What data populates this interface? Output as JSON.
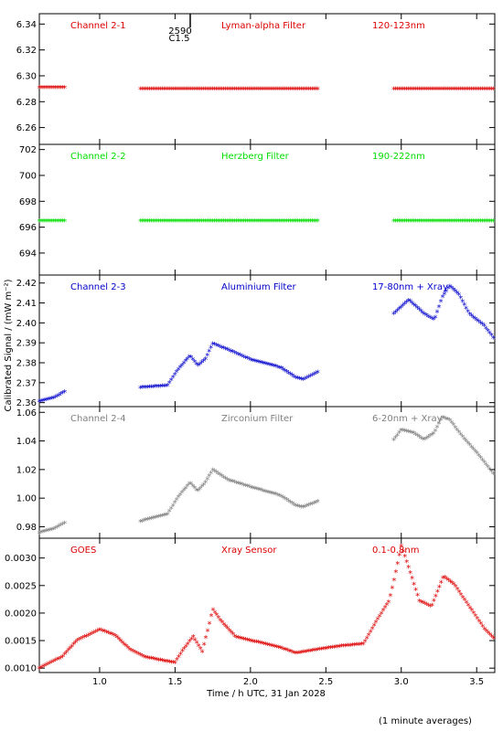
{
  "figure": {
    "ylabel": "Calibrated Signal / (mW m⁻²)",
    "xlabel": "Time / h UTC, 31 Jan 2028",
    "footnote": "(1 minute averages)",
    "marker_text_1": "2590",
    "marker_text_2": "C1.5"
  },
  "chart_data": [
    {
      "type": "scatter",
      "labels": [
        "Channel 2-1",
        "Lyman-alpha Filter",
        "120-123nm"
      ],
      "color": "#dd0000",
      "xlim": [
        0.6,
        3.62
      ],
      "ylim": [
        6.247,
        6.348
      ],
      "yticks": [
        6.26,
        6.28,
        6.3,
        6.32,
        6.34
      ],
      "ytick_labels": [
        "6.26",
        "6.28",
        "6.30",
        "6.32",
        "6.34"
      ],
      "segments": [
        {
          "x0": 0.6,
          "x1": 0.77,
          "points": [
            [
              0.6,
              6.29
            ],
            [
              0.77,
              6.29
            ]
          ]
        },
        {
          "x0": 1.27,
          "x1": 2.45,
          "points": [
            [
              1.27,
              6.289
            ],
            [
              2.45,
              6.289
            ]
          ]
        },
        {
          "x0": 2.95,
          "x1": 3.62,
          "points": [
            [
              2.95,
              6.289
            ],
            [
              3.62,
              6.289
            ]
          ]
        }
      ]
    },
    {
      "type": "scatter",
      "labels": [
        "Channel 2-2",
        "Herzberg Filter",
        "190-222nm"
      ],
      "color": "#00dd00",
      "xlim": [
        0.6,
        3.62
      ],
      "ylim": [
        692.3,
        702.4
      ],
      "yticks": [
        694,
        696,
        698,
        700,
        702
      ],
      "ytick_labels": [
        "694",
        "696",
        "698",
        "700",
        "702"
      ],
      "segments": [
        {
          "x0": 0.6,
          "x1": 0.77,
          "points": [
            [
              0.6,
              696.4
            ],
            [
              0.77,
              696.4
            ]
          ]
        },
        {
          "x0": 1.27,
          "x1": 2.45,
          "points": [
            [
              1.27,
              696.4
            ],
            [
              2.45,
              696.4
            ]
          ]
        },
        {
          "x0": 2.95,
          "x1": 3.62,
          "points": [
            [
              2.95,
              696.4
            ],
            [
              3.62,
              696.4
            ]
          ]
        }
      ]
    },
    {
      "type": "scatter",
      "labels": [
        "Channel 2-3",
        "Aluminium Filter",
        "17-80nm + Xray"
      ],
      "color": "#0000cc",
      "xlim": [
        0.6,
        3.62
      ],
      "ylim": [
        2.358,
        2.424
      ],
      "yticks": [
        2.36,
        2.37,
        2.38,
        2.39,
        2.4,
        2.41,
        2.42
      ],
      "ytick_labels": [
        "2.36",
        "2.37",
        "2.38",
        "2.39",
        "2.40",
        "2.41",
        "2.42"
      ],
      "segments": [
        {
          "x0": 0.6,
          "x1": 0.77,
          "points": [
            [
              0.6,
              2.36
            ],
            [
              0.7,
              2.362
            ],
            [
              0.77,
              2.365
            ]
          ]
        },
        {
          "x0": 1.27,
          "x1": 2.45,
          "points": [
            [
              1.27,
              2.367
            ],
            [
              1.45,
              2.368
            ],
            [
              1.52,
              2.376
            ],
            [
              1.6,
              2.383
            ],
            [
              1.65,
              2.378
            ],
            [
              1.7,
              2.381
            ],
            [
              1.75,
              2.389
            ],
            [
              1.85,
              2.386
            ],
            [
              2.0,
              2.381
            ],
            [
              2.2,
              2.377
            ],
            [
              2.3,
              2.372
            ],
            [
              2.35,
              2.371
            ],
            [
              2.45,
              2.375
            ]
          ]
        },
        {
          "x0": 2.95,
          "x1": 3.62,
          "points": [
            [
              2.95,
              2.404
            ],
            [
              3.05,
              2.411
            ],
            [
              3.15,
              2.404
            ],
            [
              3.22,
              2.401
            ],
            [
              3.27,
              2.412
            ],
            [
              3.32,
              2.418
            ],
            [
              3.38,
              2.414
            ],
            [
              3.45,
              2.404
            ],
            [
              3.55,
              2.398
            ],
            [
              3.62,
              2.391
            ]
          ]
        }
      ]
    },
    {
      "type": "scatter",
      "labels": [
        "Channel 2-4",
        "Zirconium Filter",
        "6-20nm + Xray"
      ],
      "color": "#808080",
      "xlim": [
        0.6,
        3.62
      ],
      "ylim": [
        0.972,
        1.064
      ],
      "yticks": [
        0.98,
        1.0,
        1.02,
        1.04,
        1.06
      ],
      "ytick_labels": [
        "0.98",
        "1.00",
        "1.02",
        "1.04",
        "1.06"
      ],
      "segments": [
        {
          "x0": 0.6,
          "x1": 0.77,
          "points": [
            [
              0.6,
              0.975
            ],
            [
              0.7,
              0.978
            ],
            [
              0.77,
              0.982
            ]
          ]
        },
        {
          "x0": 1.27,
          "x1": 2.45,
          "points": [
            [
              1.27,
              0.983
            ],
            [
              1.45,
              0.988
            ],
            [
              1.52,
              1.0
            ],
            [
              1.6,
              1.01
            ],
            [
              1.65,
              1.004
            ],
            [
              1.7,
              1.01
            ],
            [
              1.75,
              1.019
            ],
            [
              1.85,
              1.012
            ],
            [
              2.0,
              1.007
            ],
            [
              2.2,
              1.001
            ],
            [
              2.3,
              0.994
            ],
            [
              2.35,
              0.993
            ],
            [
              2.45,
              0.997
            ]
          ]
        },
        {
          "x0": 2.95,
          "x1": 3.62,
          "points": [
            [
              2.95,
              1.04
            ],
            [
              3.0,
              1.047
            ],
            [
              3.08,
              1.045
            ],
            [
              3.15,
              1.04
            ],
            [
              3.22,
              1.045
            ],
            [
              3.27,
              1.056
            ],
            [
              3.32,
              1.054
            ],
            [
              3.4,
              1.043
            ],
            [
              3.5,
              1.031
            ],
            [
              3.62,
              1.015
            ]
          ]
        }
      ]
    },
    {
      "type": "scatter",
      "labels": [
        "GOES",
        "Xray Sensor",
        "0.1-0.8nm"
      ],
      "color": "#dd0000",
      "xlim": [
        0.6,
        3.62
      ],
      "ylim": [
        0.00092,
        0.00336
      ],
      "yticks": [
        0.001,
        0.0015,
        0.002,
        0.0025,
        0.003
      ],
      "ytick_labels": [
        "0.0010",
        "0.0015",
        "0.0020",
        "0.0025",
        "0.0030"
      ],
      "segments": [
        {
          "x0": 0.6,
          "x1": 3.62,
          "points": [
            [
              0.6,
              0.00098
            ],
            [
              0.75,
              0.00118
            ],
            [
              0.85,
              0.00148
            ],
            [
              1.0,
              0.00168
            ],
            [
              1.1,
              0.00158
            ],
            [
              1.2,
              0.00132
            ],
            [
              1.3,
              0.00118
            ],
            [
              1.45,
              0.0011
            ],
            [
              1.5,
              0.00108
            ],
            [
              1.55,
              0.0013
            ],
            [
              1.62,
              0.00155
            ],
            [
              1.68,
              0.00128
            ],
            [
              1.72,
              0.0017
            ],
            [
              1.75,
              0.00205
            ],
            [
              1.8,
              0.00185
            ],
            [
              1.9,
              0.00155
            ],
            [
              2.0,
              0.00148
            ],
            [
              2.1,
              0.00142
            ],
            [
              2.2,
              0.00135
            ],
            [
              2.3,
              0.00125
            ],
            [
              2.45,
              0.00132
            ],
            [
              2.6,
              0.00138
            ],
            [
              2.75,
              0.00142
            ],
            [
              2.85,
              0.0019
            ],
            [
              2.92,
              0.0022
            ],
            [
              2.97,
              0.0028
            ],
            [
              3.0,
              0.0032
            ],
            [
              3.05,
              0.0028
            ],
            [
              3.12,
              0.0022
            ],
            [
              3.2,
              0.0021
            ],
            [
              3.28,
              0.00265
            ],
            [
              3.35,
              0.0025
            ],
            [
              3.45,
              0.0021
            ],
            [
              3.55,
              0.0017
            ],
            [
              3.62,
              0.0015
            ]
          ]
        }
      ]
    }
  ],
  "xaxis": {
    "xlim": [
      0.6,
      3.62
    ],
    "ticks": [
      1.0,
      1.5,
      2.0,
      2.5,
      3.0,
      3.5
    ],
    "tick_labels": [
      "1.0",
      "1.5",
      "2.0",
      "2.5",
      "3.0",
      "3.5"
    ]
  }
}
